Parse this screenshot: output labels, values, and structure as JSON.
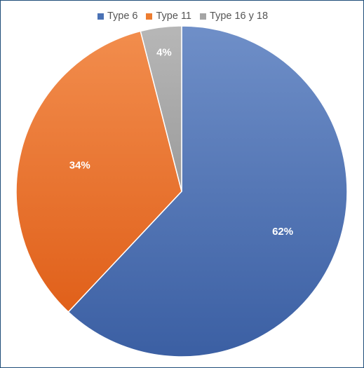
{
  "chart_data": {
    "type": "pie",
    "categories": [
      "Type 6",
      "Type 11",
      "Type 16 y 18"
    ],
    "values": [
      62,
      34,
      4
    ],
    "labels": [
      "62%",
      "34%",
      "4%"
    ],
    "colors": [
      "#4a72b5",
      "#ed7d31",
      "#a5a5a5"
    ],
    "legend_position": "top-center",
    "start_angle": "12 o'clock",
    "direction": "clockwise"
  }
}
